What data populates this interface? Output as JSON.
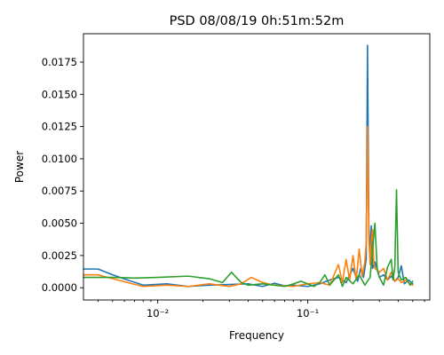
{
  "chart_data": {
    "type": "line",
    "title": "PSD 08/08/19 0h:51m:52m",
    "xlabel": "Frequency",
    "ylabel": "Power",
    "xscale": "log",
    "xlim": [
      0.0032,
      0.65
    ],
    "ylim": [
      -0.00095,
      0.0197
    ],
    "grid": false,
    "legend": "none",
    "yticks": [
      0.0,
      0.0025,
      0.005,
      0.0075,
      0.01,
      0.0125,
      0.015,
      0.0175
    ],
    "ytick_labels": [
      "0.0000",
      "0.0025",
      "0.0050",
      "0.0075",
      "0.0100",
      "0.0125",
      "0.0150",
      "0.0175"
    ],
    "xticks_major": [
      0.01,
      0.1
    ],
    "xtick_labels": [
      "10⁻²",
      "10⁻¹"
    ],
    "xticks_minor": [
      0.004,
      0.005,
      0.006,
      0.007,
      0.008,
      0.009,
      0.02,
      0.03,
      0.04,
      0.05,
      0.06,
      0.07,
      0.08,
      0.09,
      0.2,
      0.3,
      0.4,
      0.5,
      0.6
    ],
    "series": [
      {
        "color": "#1f77b4",
        "points": [
          [
            0.0032,
            0.00145
          ],
          [
            0.004,
            0.00145
          ],
          [
            0.005,
            0.001
          ],
          [
            0.0063,
            0.0006
          ],
          [
            0.008,
            0.0002
          ],
          [
            0.0115,
            0.0003
          ],
          [
            0.016,
            0.0001
          ],
          [
            0.022,
            0.0002
          ],
          [
            0.03,
            0.00025
          ],
          [
            0.04,
            0.0003
          ],
          [
            0.05,
            0.0001
          ],
          [
            0.06,
            0.00035
          ],
          [
            0.07,
            0.00015
          ],
          [
            0.08,
            0.0002
          ],
          [
            0.1,
            0.0001
          ],
          [
            0.12,
            0.0003
          ],
          [
            0.14,
            0.0006
          ],
          [
            0.16,
            0.0008
          ],
          [
            0.18,
            0.0004
          ],
          [
            0.2,
            0.0015
          ],
          [
            0.215,
            0.0005
          ],
          [
            0.225,
            0.0015
          ],
          [
            0.235,
            0.0008
          ],
          [
            0.245,
            0.0022
          ],
          [
            0.25,
            0.0188
          ],
          [
            0.255,
            0.005
          ],
          [
            0.26,
            0.0025
          ],
          [
            0.265,
            0.0048
          ],
          [
            0.27,
            0.0015
          ],
          [
            0.28,
            0.002
          ],
          [
            0.3,
            0.0008
          ],
          [
            0.32,
            0.001
          ],
          [
            0.34,
            0.0006
          ],
          [
            0.36,
            0.0009
          ],
          [
            0.38,
            0.0005
          ],
          [
            0.4,
            0.0008
          ],
          [
            0.42,
            0.0017
          ],
          [
            0.44,
            0.0003
          ],
          [
            0.47,
            0.0006
          ],
          [
            0.5,
            0.0003
          ]
        ]
      },
      {
        "color": "#ff7f0e",
        "points": [
          [
            0.0032,
            0.001
          ],
          [
            0.004,
            0.001
          ],
          [
            0.005,
            0.0007
          ],
          [
            0.0063,
            0.0004
          ],
          [
            0.008,
            0.0001
          ],
          [
            0.0115,
            0.0002
          ],
          [
            0.016,
            0.0001
          ],
          [
            0.022,
            0.0003
          ],
          [
            0.03,
            0.0001
          ],
          [
            0.036,
            0.0003
          ],
          [
            0.042,
            0.0008
          ],
          [
            0.05,
            0.0004
          ],
          [
            0.06,
            0.0002
          ],
          [
            0.08,
            0.0001
          ],
          [
            0.1,
            0.0003
          ],
          [
            0.12,
            0.0004
          ],
          [
            0.14,
            0.0002
          ],
          [
            0.16,
            0.0018
          ],
          [
            0.17,
            0.0004
          ],
          [
            0.18,
            0.0022
          ],
          [
            0.19,
            0.0006
          ],
          [
            0.2,
            0.0025
          ],
          [
            0.21,
            0.0006
          ],
          [
            0.22,
            0.003
          ],
          [
            0.23,
            0.0009
          ],
          [
            0.24,
            0.002
          ],
          [
            0.245,
            0.0035
          ],
          [
            0.25,
            0.0125
          ],
          [
            0.255,
            0.004
          ],
          [
            0.26,
            0.0018
          ],
          [
            0.265,
            0.0038
          ],
          [
            0.27,
            0.0045
          ],
          [
            0.275,
            0.002
          ],
          [
            0.28,
            0.0015
          ],
          [
            0.3,
            0.0012
          ],
          [
            0.32,
            0.0015
          ],
          [
            0.34,
            0.0006
          ],
          [
            0.36,
            0.0012
          ],
          [
            0.38,
            0.0005
          ],
          [
            0.4,
            0.0007
          ],
          [
            0.42,
            0.0004
          ],
          [
            0.45,
            0.0006
          ],
          [
            0.48,
            0.0003
          ],
          [
            0.5,
            0.0002
          ]
        ]
      },
      {
        "color": "#2ca02c",
        "points": [
          [
            0.0032,
            0.0008
          ],
          [
            0.005,
            0.0008
          ],
          [
            0.007,
            0.00075
          ],
          [
            0.01,
            0.0008
          ],
          [
            0.016,
            0.0009
          ],
          [
            0.022,
            0.0007
          ],
          [
            0.027,
            0.0004
          ],
          [
            0.031,
            0.0012
          ],
          [
            0.036,
            0.0004
          ],
          [
            0.04,
            0.0002
          ],
          [
            0.05,
            0.0003
          ],
          [
            0.06,
            0.0002
          ],
          [
            0.07,
            0.0001
          ],
          [
            0.08,
            0.0003
          ],
          [
            0.09,
            0.0005
          ],
          [
            0.1,
            0.0003
          ],
          [
            0.11,
            0.0001
          ],
          [
            0.12,
            0.0004
          ],
          [
            0.13,
            0.001
          ],
          [
            0.14,
            0.0002
          ],
          [
            0.16,
            0.001
          ],
          [
            0.17,
            0.0001
          ],
          [
            0.18,
            0.0008
          ],
          [
            0.2,
            0.0003
          ],
          [
            0.22,
            0.001
          ],
          [
            0.24,
            0.0002
          ],
          [
            0.26,
            0.0008
          ],
          [
            0.28,
            0.005
          ],
          [
            0.29,
            0.0015
          ],
          [
            0.3,
            0.0008
          ],
          [
            0.32,
            0.0002
          ],
          [
            0.34,
            0.0016
          ],
          [
            0.36,
            0.0022
          ],
          [
            0.37,
            0.0006
          ],
          [
            0.38,
            0.0016
          ],
          [
            0.39,
            0.0076
          ],
          [
            0.4,
            0.0012
          ],
          [
            0.42,
            0.0006
          ],
          [
            0.45,
            0.0008
          ],
          [
            0.48,
            0.0002
          ],
          [
            0.5,
            0.0005
          ]
        ]
      }
    ]
  }
}
